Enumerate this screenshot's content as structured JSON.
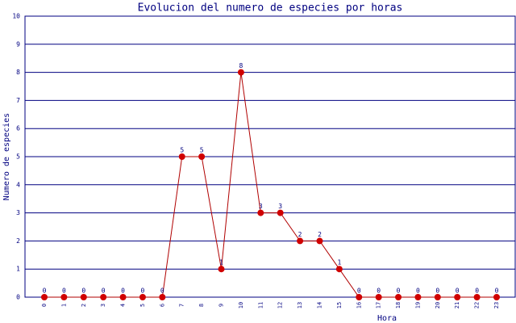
{
  "chart_data": {
    "type": "line",
    "title": "Evolucion del numero de especies por horas",
    "x_label": "Hora",
    "y_label": "Numero de especies",
    "categories": [
      "0",
      "1",
      "2",
      "3",
      "4",
      "5",
      "6",
      "7",
      "8",
      "9",
      "10",
      "11",
      "12",
      "13",
      "14",
      "15",
      "16",
      "17",
      "18",
      "19",
      "20",
      "21",
      "22",
      "23"
    ],
    "series": [
      {
        "name": "especies",
        "color": "#b00000",
        "values": [
          0,
          0,
          0,
          0,
          0,
          0,
          0,
          5,
          5,
          1,
          8,
          3,
          3,
          2,
          2,
          1,
          0,
          0,
          0,
          0,
          0,
          0,
          0,
          0
        ]
      }
    ],
    "ylim": [
      0,
      10
    ],
    "yticks": [
      0,
      1,
      2,
      3,
      4,
      5,
      6,
      7,
      8,
      9,
      10
    ],
    "grid": true
  }
}
